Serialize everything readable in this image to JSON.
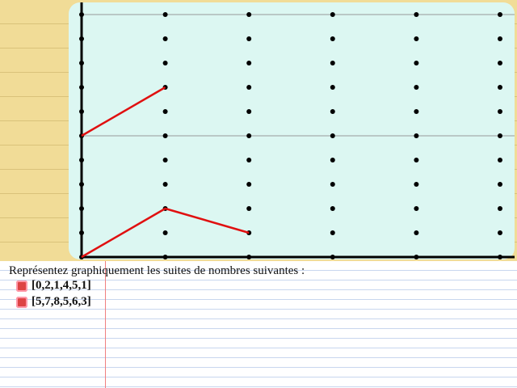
{
  "instruction": "Représentez graphiquement les suites de nombres suivantes :",
  "items": [
    {
      "label": "[0,2,1,4,5,1]"
    },
    {
      "label": "[5,7,8,5,6,3]"
    }
  ],
  "graph": {
    "xlim": [
      0,
      5
    ],
    "ylim": [
      0,
      10
    ],
    "guide_lines": [
      5,
      10
    ],
    "drawn": [
      [
        0,
        2,
        1
      ],
      [
        5,
        7
      ]
    ]
  }
}
